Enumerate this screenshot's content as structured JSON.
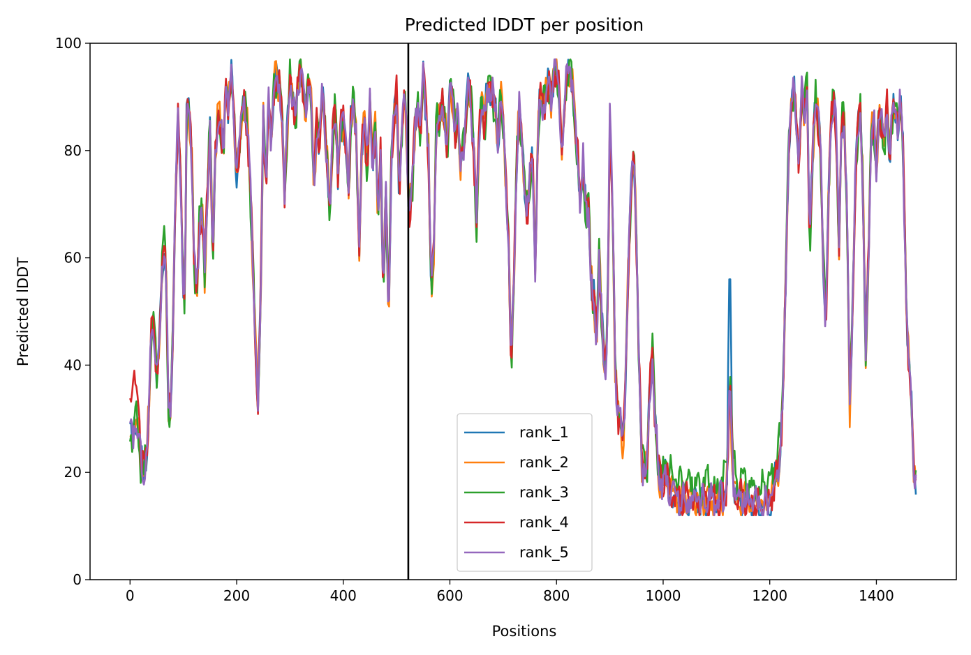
{
  "chart_data": {
    "type": "line",
    "title": "Predicted lDDT per position",
    "xlabel": "Positions",
    "ylabel": "Predicted lDDT",
    "xlim": [
      -75,
      1550
    ],
    "ylim": [
      0,
      100
    ],
    "xticks": [
      0,
      200,
      400,
      600,
      800,
      1000,
      1200,
      1400
    ],
    "yticks": [
      0,
      20,
      40,
      60,
      80,
      100
    ],
    "grid": false,
    "legend_position": "lower-center",
    "chain_break": 522,
    "series": [
      {
        "name": "rank_1",
        "color": "#1f77b4"
      },
      {
        "name": "rank_2",
        "color": "#ff7f0e"
      },
      {
        "name": "rank_3",
        "color": "#2ca02c"
      },
      {
        "name": "rank_4",
        "color": "#d62728"
      },
      {
        "name": "rank_5",
        "color": "#9467bd"
      }
    ],
    "profile": [
      [
        0,
        27
      ],
      [
        5,
        25
      ],
      [
        10,
        30
      ],
      [
        15,
        28
      ],
      [
        20,
        22
      ],
      [
        25,
        20
      ],
      [
        30,
        23
      ],
      [
        35,
        30
      ],
      [
        40,
        46
      ],
      [
        45,
        48
      ],
      [
        50,
        38
      ],
      [
        55,
        44
      ],
      [
        60,
        58
      ],
      [
        65,
        64
      ],
      [
        68,
        55
      ],
      [
        72,
        32
      ],
      [
        76,
        30
      ],
      [
        80,
        45
      ],
      [
        85,
        70
      ],
      [
        90,
        86
      ],
      [
        95,
        75
      ],
      [
        100,
        55
      ],
      [
        103,
        50
      ],
      [
        106,
        85
      ],
      [
        110,
        88
      ],
      [
        115,
        82
      ],
      [
        120,
        60
      ],
      [
        125,
        53
      ],
      [
        130,
        66
      ],
      [
        135,
        70
      ],
      [
        140,
        56
      ],
      [
        145,
        72
      ],
      [
        150,
        86
      ],
      [
        155,
        60
      ],
      [
        160,
        78
      ],
      [
        165,
        89
      ],
      [
        170,
        84
      ],
      [
        175,
        80
      ],
      [
        180,
        92
      ],
      [
        185,
        88
      ],
      [
        190,
        94
      ],
      [
        195,
        86
      ],
      [
        200,
        76
      ],
      [
        205,
        80
      ],
      [
        210,
        88
      ],
      [
        215,
        90
      ],
      [
        220,
        84
      ],
      [
        225,
        74
      ],
      [
        230,
        60
      ],
      [
        235,
        45
      ],
      [
        240,
        32
      ],
      [
        245,
        52
      ],
      [
        250,
        88
      ],
      [
        255,
        72
      ],
      [
        260,
        90
      ],
      [
        265,
        82
      ],
      [
        270,
        92
      ],
      [
        275,
        94
      ],
      [
        280,
        92
      ],
      [
        285,
        88
      ],
      [
        290,
        70
      ],
      [
        295,
        84
      ],
      [
        300,
        94
      ],
      [
        305,
        90
      ],
      [
        310,
        84
      ],
      [
        315,
        93
      ],
      [
        320,
        96
      ],
      [
        325,
        91
      ],
      [
        330,
        86
      ],
      [
        335,
        94
      ],
      [
        340,
        90
      ],
      [
        345,
        72
      ],
      [
        350,
        85
      ],
      [
        355,
        82
      ],
      [
        360,
        90
      ],
      [
        365,
        85
      ],
      [
        370,
        78
      ],
      [
        375,
        68
      ],
      [
        380,
        82
      ],
      [
        385,
        88
      ],
      [
        390,
        75
      ],
      [
        395,
        84
      ],
      [
        400,
        86
      ],
      [
        405,
        82
      ],
      [
        410,
        72
      ],
      [
        415,
        88
      ],
      [
        420,
        90
      ],
      [
        425,
        80
      ],
      [
        430,
        60
      ],
      [
        435,
        82
      ],
      [
        440,
        86
      ],
      [
        445,
        75
      ],
      [
        450,
        90
      ],
      [
        455,
        78
      ],
      [
        460,
        84
      ],
      [
        465,
        68
      ],
      [
        470,
        80
      ],
      [
        475,
        55
      ],
      [
        480,
        72
      ],
      [
        485,
        48
      ],
      [
        490,
        78
      ],
      [
        495,
        86
      ],
      [
        500,
        90
      ],
      [
        505,
        72
      ],
      [
        510,
        84
      ],
      [
        515,
        92
      ],
      [
        520,
        80
      ],
      [
        523,
        68
      ],
      [
        530,
        74
      ],
      [
        535,
        86
      ],
      [
        540,
        90
      ],
      [
        545,
        82
      ],
      [
        550,
        94
      ],
      [
        555,
        88
      ],
      [
        560,
        80
      ],
      [
        565,
        52
      ],
      [
        570,
        62
      ],
      [
        575,
        88
      ],
      [
        580,
        84
      ],
      [
        585,
        90
      ],
      [
        590,
        86
      ],
      [
        595,
        80
      ],
      [
        600,
        92
      ],
      [
        605,
        90
      ],
      [
        610,
        84
      ],
      [
        615,
        86
      ],
      [
        620,
        78
      ],
      [
        625,
        80
      ],
      [
        630,
        86
      ],
      [
        635,
        92
      ],
      [
        640,
        88
      ],
      [
        645,
        80
      ],
      [
        650,
        66
      ],
      [
        655,
        84
      ],
      [
        660,
        90
      ],
      [
        665,
        84
      ],
      [
        670,
        92
      ],
      [
        675,
        93
      ],
      [
        680,
        90
      ],
      [
        685,
        88
      ],
      [
        690,
        82
      ],
      [
        695,
        90
      ],
      [
        700,
        86
      ],
      [
        705,
        74
      ],
      [
        710,
        64
      ],
      [
        715,
        40
      ],
      [
        720,
        56
      ],
      [
        725,
        78
      ],
      [
        730,
        88
      ],
      [
        735,
        82
      ],
      [
        740,
        74
      ],
      [
        745,
        68
      ],
      [
        750,
        74
      ],
      [
        755,
        80
      ],
      [
        760,
        58
      ],
      [
        765,
        84
      ],
      [
        770,
        90
      ],
      [
        775,
        88
      ],
      [
        780,
        90
      ],
      [
        785,
        92
      ],
      [
        790,
        90
      ],
      [
        795,
        95
      ],
      [
        800,
        96
      ],
      [
        805,
        90
      ],
      [
        810,
        80
      ],
      [
        815,
        88
      ],
      [
        820,
        94
      ],
      [
        825,
        96
      ],
      [
        830,
        92
      ],
      [
        835,
        84
      ],
      [
        840,
        78
      ],
      [
        845,
        70
      ],
      [
        850,
        78
      ],
      [
        855,
        68
      ],
      [
        860,
        70
      ],
      [
        865,
        55
      ],
      [
        870,
        52
      ],
      [
        875,
        45
      ],
      [
        880,
        60
      ],
      [
        885,
        48
      ],
      [
        890,
        38
      ],
      [
        895,
        45
      ],
      [
        900,
        86
      ],
      [
        905,
        70
      ],
      [
        910,
        40
      ],
      [
        915,
        32
      ],
      [
        920,
        28
      ],
      [
        925,
        25
      ],
      [
        930,
        40
      ],
      [
        935,
        60
      ],
      [
        940,
        72
      ],
      [
        945,
        82
      ],
      [
        950,
        62
      ],
      [
        955,
        40
      ],
      [
        960,
        22
      ],
      [
        965,
        20
      ],
      [
        970,
        22
      ],
      [
        975,
        35
      ],
      [
        980,
        42
      ],
      [
        985,
        30
      ],
      [
        990,
        22
      ],
      [
        995,
        18
      ],
      [
        1000,
        18
      ],
      [
        1005,
        19
      ],
      [
        1010,
        17
      ],
      [
        1015,
        16
      ],
      [
        1020,
        16
      ],
      [
        1030,
        15
      ],
      [
        1040,
        15
      ],
      [
        1050,
        15
      ],
      [
        1060,
        15
      ],
      [
        1070,
        14
      ],
      [
        1080,
        15
      ],
      [
        1090,
        15
      ],
      [
        1100,
        14
      ],
      [
        1110,
        15
      ],
      [
        1118,
        16
      ],
      [
        1122,
        25
      ],
      [
        1125,
        40
      ],
      [
        1128,
        28
      ],
      [
        1132,
        18
      ],
      [
        1140,
        15
      ],
      [
        1150,
        15
      ],
      [
        1160,
        15
      ],
      [
        1170,
        14
      ],
      [
        1180,
        14
      ],
      [
        1190,
        14
      ],
      [
        1200,
        15
      ],
      [
        1205,
        16
      ],
      [
        1210,
        18
      ],
      [
        1215,
        20
      ],
      [
        1220,
        24
      ],
      [
        1225,
        35
      ],
      [
        1230,
        55
      ],
      [
        1235,
        80
      ],
      [
        1240,
        88
      ],
      [
        1245,
        92
      ],
      [
        1250,
        86
      ],
      [
        1255,
        78
      ],
      [
        1260,
        90
      ],
      [
        1265,
        88
      ],
      [
        1270,
        92
      ],
      [
        1275,
        62
      ],
      [
        1280,
        78
      ],
      [
        1285,
        90
      ],
      [
        1290,
        86
      ],
      [
        1295,
        82
      ],
      [
        1300,
        60
      ],
      [
        1305,
        48
      ],
      [
        1310,
        70
      ],
      [
        1315,
        86
      ],
      [
        1320,
        90
      ],
      [
        1325,
        84
      ],
      [
        1330,
        60
      ],
      [
        1335,
        88
      ],
      [
        1340,
        84
      ],
      [
        1345,
        68
      ],
      [
        1350,
        32
      ],
      [
        1355,
        50
      ],
      [
        1360,
        72
      ],
      [
        1365,
        84
      ],
      [
        1370,
        88
      ],
      [
        1375,
        72
      ],
      [
        1380,
        42
      ],
      [
        1385,
        60
      ],
      [
        1390,
        82
      ],
      [
        1395,
        86
      ],
      [
        1400,
        76
      ],
      [
        1405,
        88
      ],
      [
        1410,
        85
      ],
      [
        1415,
        80
      ],
      [
        1420,
        90
      ],
      [
        1425,
        78
      ],
      [
        1430,
        86
      ],
      [
        1435,
        88
      ],
      [
        1440,
        84
      ],
      [
        1445,
        90
      ],
      [
        1450,
        80
      ],
      [
        1455,
        55
      ],
      [
        1460,
        42
      ],
      [
        1465,
        35
      ],
      [
        1470,
        20
      ],
      [
        1475,
        18
      ]
    ]
  }
}
